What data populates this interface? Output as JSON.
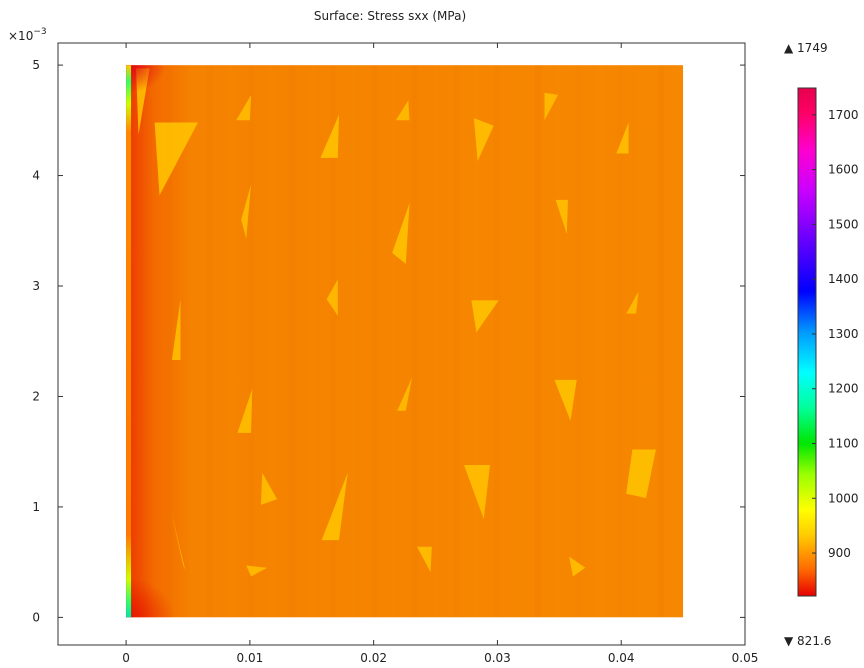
{
  "chart_data": {
    "type": "heatmap",
    "title": "Surface: Stress sxx (MPa)",
    "xlabel": "",
    "ylabel": "",
    "y_multiplier": "×10",
    "y_multiplier_exp": "−3",
    "xlim": [
      -0.0055,
      0.05
    ],
    "ylim": [
      -0.00025,
      0.0052
    ],
    "x_ticks": [
      0,
      0.01,
      0.02,
      0.03,
      0.04,
      0.05
    ],
    "x_tick_labels": [
      "0",
      "0.01",
      "0.02",
      "0.03",
      "0.04",
      "0.05"
    ],
    "y_ticks": [
      0,
      0.001,
      0.002,
      0.003,
      0.004,
      0.005
    ],
    "y_tick_labels": [
      "0",
      "1",
      "2",
      "3",
      "4",
      "5"
    ],
    "domain": {
      "x": [
        0,
        0.045
      ],
      "y": [
        0,
        0.005
      ]
    },
    "field_background_mpa": 880,
    "colorbar": {
      "max_label": "▲ 1749",
      "min_label": "▼ 821.6",
      "max": 1749,
      "min": 821.6,
      "ticks": [
        900,
        1000,
        1100,
        1200,
        1300,
        1400,
        1500,
        1600,
        1700
      ],
      "colors": [
        "#e60000",
        "#ff6600",
        "#ffcc00",
        "#ffff00",
        "#99ff00",
        "#00e600",
        "#00ff99",
        "#00ffff",
        "#0099ff",
        "#0000ff",
        "#6600ff",
        "#cc00ff",
        "#ff00cc",
        "#ff0066",
        "#e6004d"
      ]
    },
    "triangles": [
      {
        "points": [
          [
            0.0023,
            0.00448
          ],
          [
            0.0058,
            0.00448
          ],
          [
            0.0027,
            0.00382
          ]
        ],
        "stress": 960
      },
      {
        "points": [
          [
            0.0089,
            0.0045
          ],
          [
            0.0101,
            0.00473
          ],
          [
            0.01,
            0.0045
          ]
        ],
        "stress": 950
      },
      {
        "points": [
          [
            0.0157,
            0.00416
          ],
          [
            0.0172,
            0.00455
          ],
          [
            0.0171,
            0.00416
          ]
        ],
        "stress": 960
      },
      {
        "points": [
          [
            0.0218,
            0.0045
          ],
          [
            0.0228,
            0.00468
          ],
          [
            0.0229,
            0.0045
          ]
        ],
        "stress": 950
      },
      {
        "points": [
          [
            0.0281,
            0.00452
          ],
          [
            0.0297,
            0.00445
          ],
          [
            0.0284,
            0.00413
          ]
        ],
        "stress": 955
      },
      {
        "points": [
          [
            0.0338,
            0.00475
          ],
          [
            0.0349,
            0.00473
          ],
          [
            0.0338,
            0.0045
          ]
        ],
        "stress": 950
      },
      {
        "points": [
          [
            0.0396,
            0.0042
          ],
          [
            0.0406,
            0.00448
          ],
          [
            0.0406,
            0.0042
          ]
        ],
        "stress": 955
      },
      {
        "points": [
          [
            0.0093,
            0.0036
          ],
          [
            0.0101,
            0.00392
          ],
          [
            0.0097,
            0.00343
          ]
        ],
        "stress": 950
      },
      {
        "points": [
          [
            0.0215,
            0.0033
          ],
          [
            0.0229,
            0.00375
          ],
          [
            0.0226,
            0.0032
          ]
        ],
        "stress": 960
      },
      {
        "points": [
          [
            0.0347,
            0.00378
          ],
          [
            0.0357,
            0.00378
          ],
          [
            0.0356,
            0.00347
          ]
        ],
        "stress": 955
      },
      {
        "points": [
          [
            0.0037,
            0.00233
          ],
          [
            0.0044,
            0.00288
          ],
          [
            0.0044,
            0.00233
          ]
        ],
        "stress": 955
      },
      {
        "points": [
          [
            0.0162,
            0.00288
          ],
          [
            0.0171,
            0.00306
          ],
          [
            0.0171,
            0.00273
          ]
        ],
        "stress": 950
      },
      {
        "points": [
          [
            0.0279,
            0.00287
          ],
          [
            0.0301,
            0.00287
          ],
          [
            0.0283,
            0.00258
          ]
        ],
        "stress": 960
      },
      {
        "points": [
          [
            0.0404,
            0.00275
          ],
          [
            0.0414,
            0.00295
          ],
          [
            0.0412,
            0.00275
          ]
        ],
        "stress": 950
      },
      {
        "points": [
          [
            0.009,
            0.00167
          ],
          [
            0.0102,
            0.00207
          ],
          [
            0.0101,
            0.00167
          ]
        ],
        "stress": 955
      },
      {
        "points": [
          [
            0.0219,
            0.00187
          ],
          [
            0.0231,
            0.00217
          ],
          [
            0.0226,
            0.00187
          ]
        ],
        "stress": 950
      },
      {
        "points": [
          [
            0.0346,
            0.00215
          ],
          [
            0.0364,
            0.00215
          ],
          [
            0.0359,
            0.00178
          ]
        ],
        "stress": 960
      },
      {
        "points": [
          [
            0.0273,
            0.00138
          ],
          [
            0.0294,
            0.00138
          ],
          [
            0.0289,
            0.00089
          ]
        ],
        "stress": 955
      },
      {
        "points": [
          [
            0.0409,
            0.00152
          ],
          [
            0.0428,
            0.00152
          ],
          [
            0.042,
            0.00108
          ],
          [
            0.0404,
            0.00112
          ]
        ],
        "stress": 960
      },
      {
        "points": [
          [
            0.011,
            0.00131
          ],
          [
            0.0122,
            0.00107
          ],
          [
            0.0109,
            0.00102
          ]
        ],
        "stress": 955
      },
      {
        "points": [
          [
            0.0036,
            0.00098
          ],
          [
            0.0046,
            0.00048
          ],
          [
            0.0048,
            0.00042
          ]
        ],
        "stress": 955
      },
      {
        "points": [
          [
            0.0158,
            0.0007
          ],
          [
            0.0179,
            0.00131
          ],
          [
            0.0172,
            0.0007
          ]
        ],
        "stress": 960
      },
      {
        "points": [
          [
            0.0097,
            0.00047
          ],
          [
            0.0114,
            0.00045
          ],
          [
            0.0101,
            0.00037
          ]
        ],
        "stress": 950
      },
      {
        "points": [
          [
            0.0235,
            0.00064
          ],
          [
            0.0247,
            0.00064
          ],
          [
            0.0246,
            0.00041
          ]
        ],
        "stress": 955
      },
      {
        "points": [
          [
            0.0358,
            0.00055
          ],
          [
            0.0371,
            0.00045
          ],
          [
            0.0361,
            0.00037
          ]
        ],
        "stress": 955
      },
      {
        "points": [
          [
            0.0008,
            0.00497
          ],
          [
            0.0019,
            0.00497
          ],
          [
            0.001,
            0.00437
          ]
        ],
        "stress": 960
      }
    ]
  }
}
